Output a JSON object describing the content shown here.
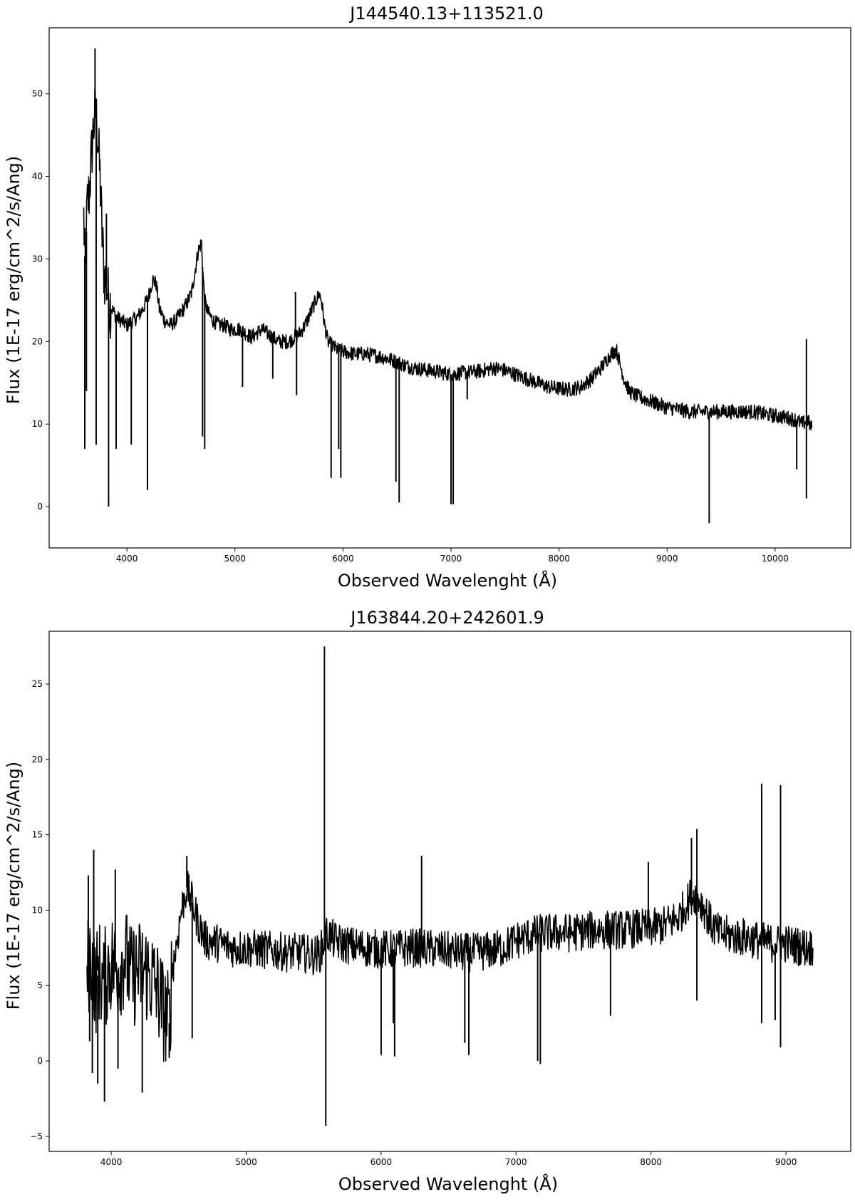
{
  "chart_data": [
    {
      "type": "line",
      "title": "J144540.13+113521.0",
      "xlabel": "Observed Wavelenght (Å)",
      "ylabel": "Flux (1E-17 erg/cm^2/s/Ang)",
      "xlim": [
        3280,
        10700
      ],
      "ylim": [
        -5,
        58
      ],
      "xticks": [
        4000,
        5000,
        6000,
        7000,
        8000,
        9000,
        10000
      ],
      "yticks": [
        0,
        10,
        20,
        30,
        40,
        50
      ],
      "grid": false,
      "line_color": "#000000",
      "series": [
        {
          "x": [
            3600,
            3615,
            3630,
            3650,
            3670,
            3690,
            3710,
            3730,
            3750,
            3770,
            3790,
            3810,
            3830,
            3860,
            3900,
            3950,
            4000,
            4050,
            4100,
            4150,
            4200,
            4240,
            4270,
            4300,
            4350,
            4400,
            4450,
            4500,
            4550,
            4600,
            4630,
            4660,
            4690,
            4700,
            4720,
            4750,
            4800,
            4850,
            4900,
            4950,
            5000,
            5050,
            5100,
            5150,
            5200,
            5250,
            5300,
            5350,
            5400,
            5450,
            5500,
            5550,
            5600,
            5650,
            5700,
            5750,
            5780,
            5800,
            5830,
            5860,
            5900,
            5950,
            6000,
            6100,
            6200,
            6300,
            6400,
            6500,
            6600,
            6700,
            6800,
            6900,
            7000,
            7100,
            7200,
            7300,
            7400,
            7500,
            7600,
            7700,
            7800,
            7900,
            8000,
            8100,
            8200,
            8300,
            8400,
            8480,
            8530,
            8560,
            8600,
            8650,
            8700,
            8800,
            8900,
            9000,
            9100,
            9200,
            9300,
            9400,
            9500,
            9600,
            9700,
            9800,
            9900,
            10000,
            10100,
            10200,
            10250,
            10300,
            10340
          ],
          "y": [
            35,
            28,
            36,
            38,
            42,
            46,
            48,
            45,
            40,
            33,
            28,
            27,
            25,
            24,
            23,
            22.5,
            22,
            22.5,
            23,
            24,
            25.5,
            27.5,
            27,
            24,
            22.5,
            22,
            22.5,
            23.5,
            24.5,
            26,
            28.5,
            31,
            32,
            29,
            25,
            23.5,
            22.5,
            22,
            22,
            21.5,
            21.5,
            21.5,
            21,
            20.5,
            21,
            21.5,
            21,
            20.5,
            20,
            20,
            20,
            20.5,
            21,
            22,
            23.5,
            25,
            25.8,
            25,
            22,
            20,
            19.5,
            19,
            18.8,
            18.5,
            18.5,
            18.3,
            18,
            17.5,
            17,
            16.7,
            16.5,
            16.3,
            16,
            16.2,
            16.3,
            16.5,
            16.8,
            16.5,
            16,
            15.5,
            15,
            14.5,
            14.3,
            14.2,
            14.5,
            15.5,
            17,
            18.5,
            19,
            17.5,
            15.5,
            14,
            13.5,
            13,
            12.5,
            12,
            11.8,
            11.5,
            11.5,
            11.5,
            11.5,
            11.5,
            11.5,
            11.5,
            11.2,
            11,
            10.8,
            10.5,
            10,
            10.5,
            9.5
          ]
        }
      ],
      "spikes": [
        {
          "x": 3610,
          "y": 7
        },
        {
          "x": 3625,
          "y": 14
        },
        {
          "x": 3705,
          "y": 55.5
        },
        {
          "x": 3715,
          "y": 7.5
        },
        {
          "x": 3810,
          "y": 35.5
        },
        {
          "x": 3830,
          "y": 0
        },
        {
          "x": 3900,
          "y": 7
        },
        {
          "x": 4040,
          "y": 7.5
        },
        {
          "x": 4190,
          "y": 2
        },
        {
          "x": 4700,
          "y": 8.5
        },
        {
          "x": 4720,
          "y": 7
        },
        {
          "x": 5070,
          "y": 14.5
        },
        {
          "x": 5350,
          "y": 15.5
        },
        {
          "x": 5560,
          "y": 26
        },
        {
          "x": 5570,
          "y": 13.5
        },
        {
          "x": 5890,
          "y": 3.5
        },
        {
          "x": 5960,
          "y": 7
        },
        {
          "x": 5980,
          "y": 3.5
        },
        {
          "x": 6490,
          "y": 3
        },
        {
          "x": 6520,
          "y": 0.5
        },
        {
          "x": 7000,
          "y": 0.3
        },
        {
          "x": 7020,
          "y": 0.3
        },
        {
          "x": 7150,
          "y": 13
        },
        {
          "x": 9390,
          "y": -2
        },
        {
          "x": 10290,
          "y": 20.3
        },
        {
          "x": 10290,
          "y": 1
        },
        {
          "x": 10200,
          "y": 4.5
        }
      ]
    },
    {
      "type": "line",
      "title": "J163844.20+242601.9",
      "xlabel": "Observed Wavelenght (Å)",
      "ylabel": "Flux (1E-17 erg/cm^2/s/Ang)",
      "xlim": [
        3540,
        9480
      ],
      "ylim": [
        -6,
        28.5
      ],
      "xticks": [
        4000,
        5000,
        6000,
        7000,
        8000,
        9000
      ],
      "yticks": [
        -5,
        0,
        5,
        10,
        15,
        20,
        25
      ],
      "grid": false,
      "line_color": "#000000",
      "series": [
        {
          "x": [
            3820,
            3850,
            3880,
            3910,
            3940,
            3970,
            4000,
            4050,
            4100,
            4150,
            4200,
            4250,
            4300,
            4350,
            4400,
            4430,
            4450,
            4480,
            4520,
            4560,
            4600,
            4650,
            4700,
            4800,
            4900,
            5000,
            5100,
            5200,
            5300,
            5400,
            5500,
            5550,
            5580,
            5600,
            5650,
            5700,
            5800,
            5900,
            6000,
            6100,
            6200,
            6300,
            6400,
            6500,
            6600,
            6700,
            6800,
            6900,
            7000,
            7100,
            7200,
            7300,
            7400,
            7500,
            7600,
            7700,
            7800,
            7900,
            8000,
            8100,
            8200,
            8250,
            8300,
            8340,
            8400,
            8450,
            8500,
            8600,
            8700,
            8800,
            8900,
            9000,
            9100,
            9200
          ],
          "y": [
            6,
            7,
            5,
            6,
            5,
            6,
            6.5,
            6,
            7,
            5.5,
            6,
            6,
            5.5,
            4.5,
            3,
            2.5,
            6,
            7.5,
            10,
            11.5,
            10.5,
            9,
            8,
            7.8,
            7.5,
            7.5,
            7.4,
            7.3,
            7.2,
            7.2,
            7,
            7.2,
            8,
            8.5,
            8,
            7.8,
            7.6,
            7.5,
            7.4,
            7.4,
            7.5,
            7.5,
            7.4,
            7.3,
            7.2,
            7.2,
            7.3,
            7.5,
            8,
            8.3,
            8.5,
            8.5,
            8.5,
            8.6,
            8.7,
            8.7,
            8.7,
            8.8,
            8.8,
            9,
            9.5,
            10.2,
            11,
            11,
            10,
            9,
            8.5,
            8.3,
            8.2,
            8,
            7.8,
            7.8,
            7.6,
            7.5
          ]
        }
      ],
      "spikes": [
        {
          "x": 3830,
          "y": 12.3
        },
        {
          "x": 3840,
          "y": 1.3
        },
        {
          "x": 3860,
          "y": -0.8
        },
        {
          "x": 3870,
          "y": 14
        },
        {
          "x": 3900,
          "y": -1.5
        },
        {
          "x": 3950,
          "y": -2.7
        },
        {
          "x": 4030,
          "y": 12.7
        },
        {
          "x": 4050,
          "y": -0.5
        },
        {
          "x": 4230,
          "y": -2.1
        },
        {
          "x": 4430,
          "y": 0.2
        },
        {
          "x": 4560,
          "y": 13.6
        },
        {
          "x": 4600,
          "y": 1.5
        },
        {
          "x": 5580,
          "y": 27.5
        },
        {
          "x": 5590,
          "y": -4.3
        },
        {
          "x": 6000,
          "y": 0.4
        },
        {
          "x": 6090,
          "y": 2.5
        },
        {
          "x": 6100,
          "y": 0.3
        },
        {
          "x": 6300,
          "y": 13.6
        },
        {
          "x": 6620,
          "y": 1.2
        },
        {
          "x": 6650,
          "y": 0.4
        },
        {
          "x": 7160,
          "y": 0
        },
        {
          "x": 7180,
          "y": -0.2
        },
        {
          "x": 7700,
          "y": 3
        },
        {
          "x": 7980,
          "y": 13.2
        },
        {
          "x": 8300,
          "y": 14.8
        },
        {
          "x": 8340,
          "y": 15.4
        },
        {
          "x": 8340,
          "y": 4
        },
        {
          "x": 8820,
          "y": 18.4
        },
        {
          "x": 8820,
          "y": 2.5
        },
        {
          "x": 8920,
          "y": 2.7
        },
        {
          "x": 8960,
          "y": 18.3
        },
        {
          "x": 8960,
          "y": 0.9
        }
      ]
    }
  ]
}
